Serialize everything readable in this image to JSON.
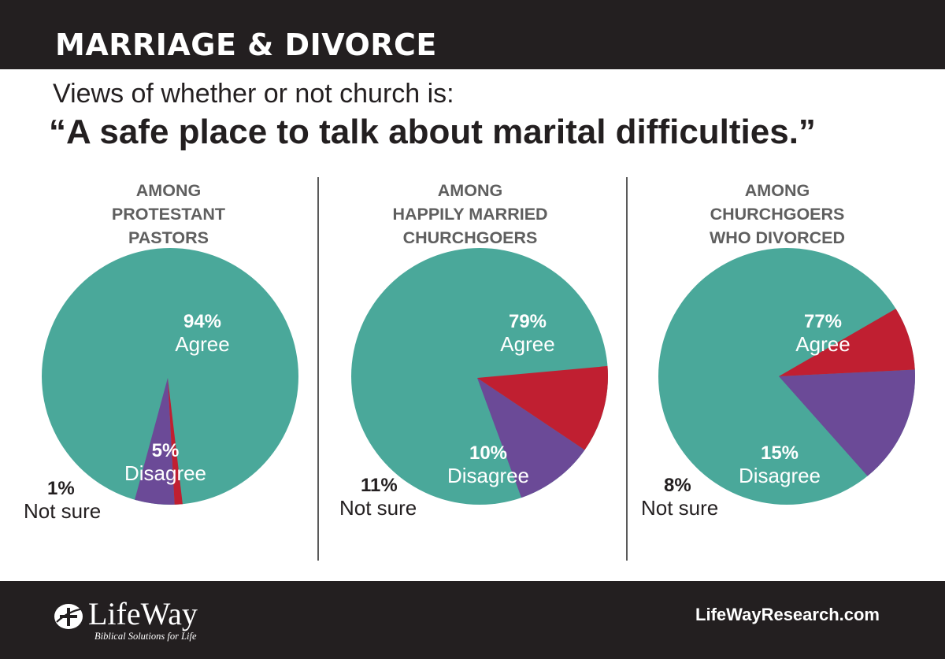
{
  "header": {
    "title": "MARRIAGE & DIVORCE",
    "subtitle": "Views of whether or not church is:",
    "quote": "“A safe place to talk about marital difficulties.”"
  },
  "colors": {
    "agree": "#4aa89a",
    "disagree": "#6b4a97",
    "not_sure": "#c01f31",
    "bar": "#231f20"
  },
  "chart_data": [
    {
      "type": "pie",
      "title_lines": [
        "AMONG",
        "PROTESTANT",
        "PASTORS"
      ],
      "slices": [
        {
          "pct_label": "94%",
          "name": "Agree",
          "value": 94
        },
        {
          "pct_label": "5%",
          "name": "Disagree",
          "value": 5
        },
        {
          "pct_label": "1%",
          "name": "Not sure",
          "value": 1
        }
      ]
    },
    {
      "type": "pie",
      "title_lines": [
        "AMONG",
        "HAPPILY MARRIED",
        "CHURCHGOERS"
      ],
      "slices": [
        {
          "pct_label": "79%",
          "name": "Agree",
          "value": 79
        },
        {
          "pct_label": "10%",
          "name": "Disagree",
          "value": 10
        },
        {
          "pct_label": "11%",
          "name": "Not sure",
          "value": 11
        }
      ]
    },
    {
      "type": "pie",
      "title_lines": [
        "AMONG",
        "CHURCHGOERS",
        "WHO DIVORCED"
      ],
      "slices": [
        {
          "pct_label": "77%",
          "name": "Agree",
          "value": 77
        },
        {
          "pct_label": "15%",
          "name": "Disagree",
          "value": 15
        },
        {
          "pct_label": "8%",
          "name": "Not sure",
          "value": 8
        }
      ]
    }
  ],
  "footer": {
    "logo_name": "LifeWay",
    "logo_tagline": "Biblical Solutions for Life",
    "logo_icon": "lifeway-cross-icon",
    "website": "LifeWayResearch.com"
  }
}
